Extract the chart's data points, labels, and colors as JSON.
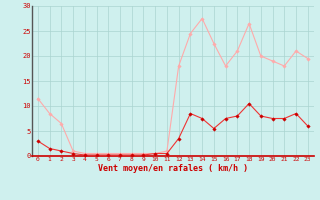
{
  "xlabel": "Vent moyen/en rafales ( km/h )",
  "background_color": "#cff0ee",
  "grid_color": "#aad4d0",
  "line_color_mean": "#ee3333",
  "line_color_gust": "#ffaaaa",
  "marker_color_mean": "#cc0000",
  "marker_color_gust": "#ffaaaa",
  "spine_color": "#555555",
  "tick_color": "#cc0000",
  "xlabel_color": "#cc0000",
  "xlim": [
    -0.5,
    23.5
  ],
  "ylim": [
    0,
    30
  ],
  "yticks": [
    0,
    5,
    10,
    15,
    20,
    25,
    30
  ],
  "xticks": [
    0,
    1,
    2,
    3,
    4,
    5,
    6,
    7,
    8,
    9,
    10,
    11,
    12,
    13,
    14,
    15,
    16,
    17,
    18,
    19,
    20,
    21,
    22,
    23
  ],
  "hours": [
    0,
    1,
    2,
    3,
    4,
    5,
    6,
    7,
    8,
    9,
    10,
    11,
    12,
    13,
    14,
    15,
    16,
    17,
    18,
    19,
    20,
    21,
    22,
    23
  ],
  "mean_values": [
    3.0,
    1.5,
    1.0,
    0.5,
    0.2,
    0.2,
    0.2,
    0.2,
    0.2,
    0.2,
    0.5,
    0.5,
    3.5,
    8.5,
    7.5,
    5.5,
    7.5,
    8.0,
    10.5,
    8.0,
    7.5,
    7.5,
    8.5,
    6.0
  ],
  "gust_values": [
    11.5,
    8.5,
    6.5,
    1.0,
    0.5,
    0.5,
    0.5,
    0.5,
    0.5,
    0.5,
    0.5,
    1.0,
    18.0,
    24.5,
    27.5,
    22.5,
    18.0,
    21.0,
    26.5,
    20.0,
    19.0,
    18.0,
    21.0,
    19.5
  ]
}
